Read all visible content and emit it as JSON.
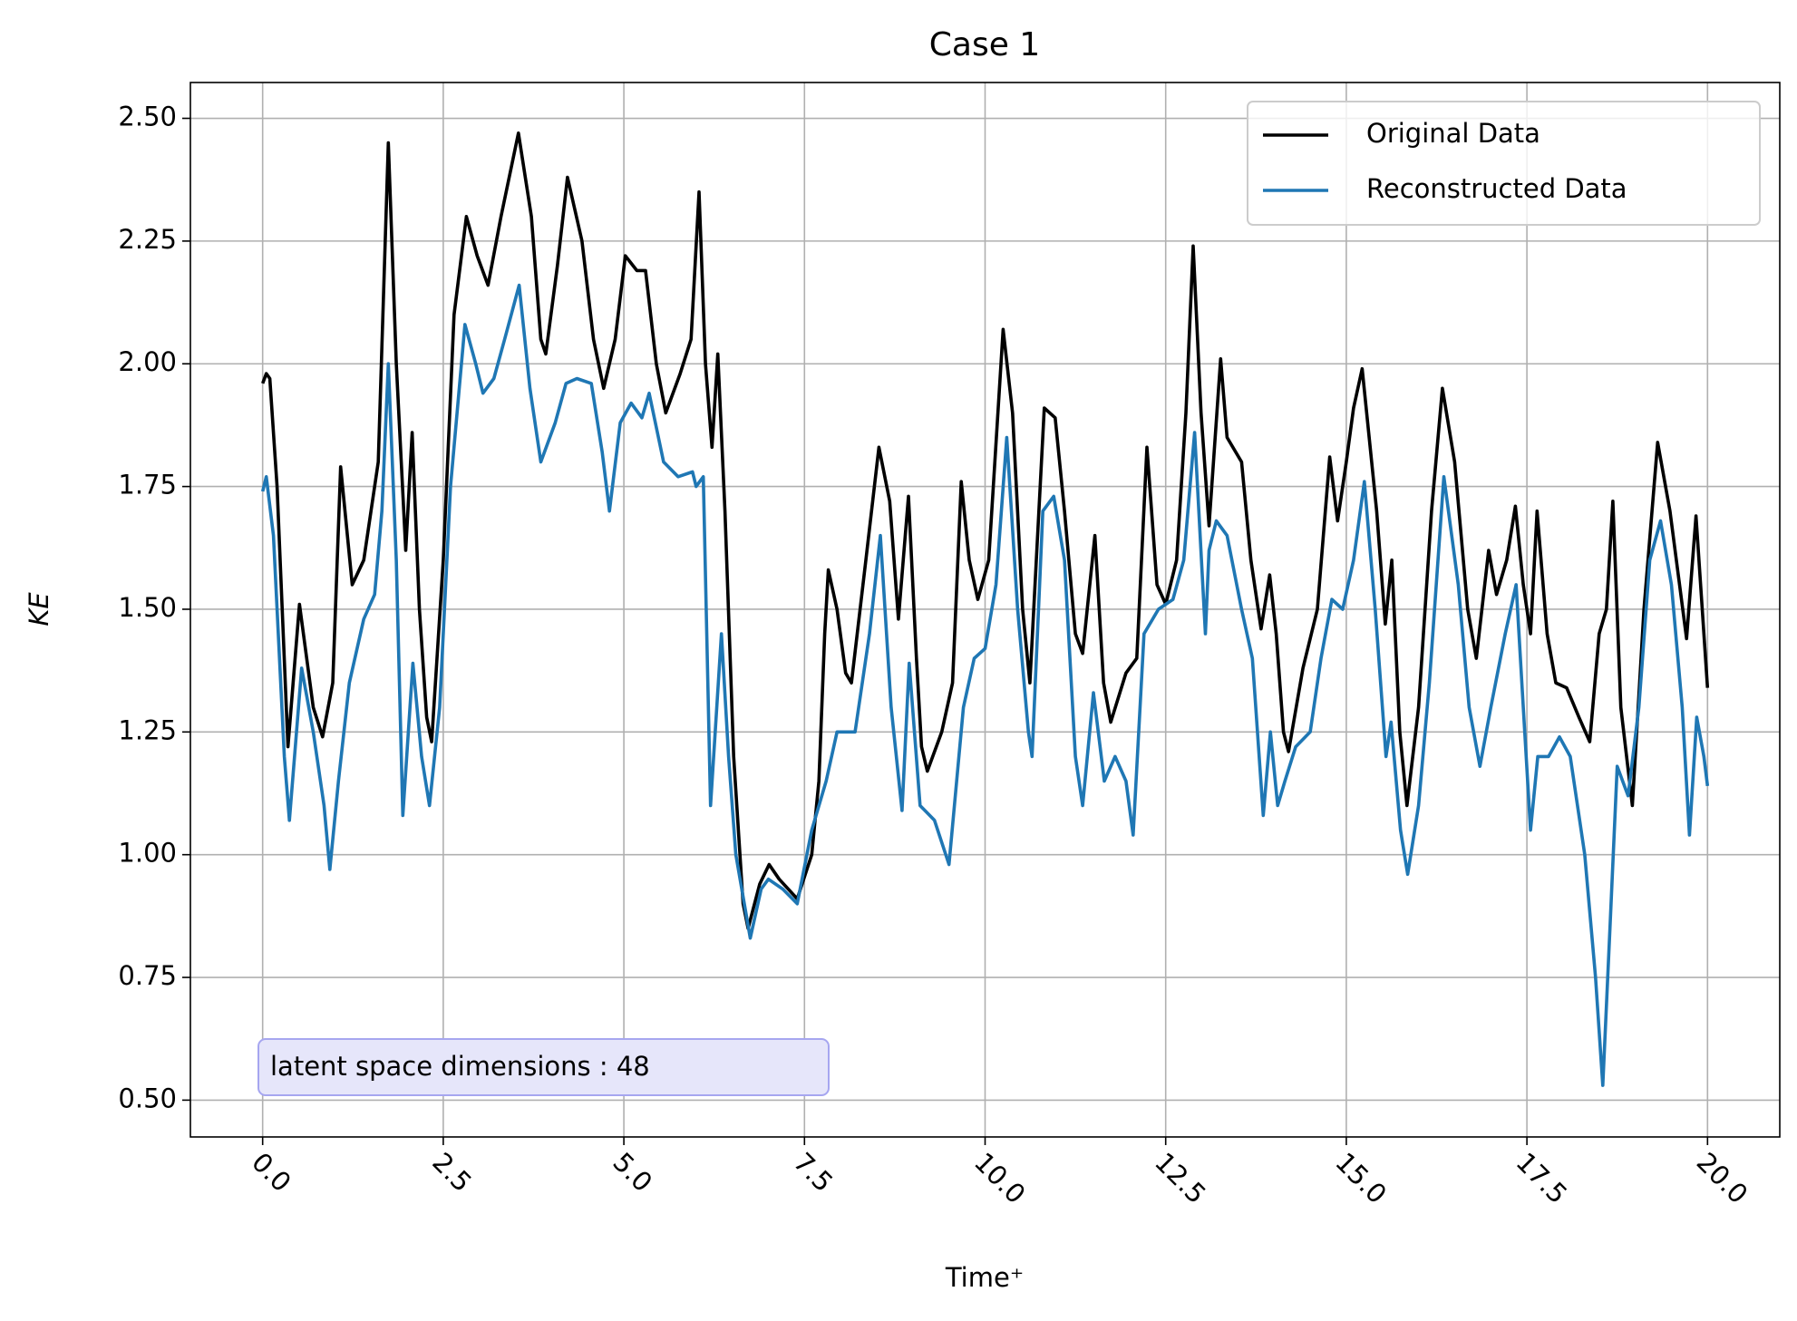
{
  "chart_data": {
    "type": "line",
    "title": "Case 1",
    "x_label": "Time⁺",
    "y_label": "KE",
    "annotation": "latent space dimensions : 48",
    "xlim": [
      -1,
      21
    ],
    "ylim": [
      0.425,
      2.573
    ],
    "xticks": [
      {
        "value": 0,
        "label": "0.0"
      },
      2.5,
      {
        "value": 5,
        "label": "5.0"
      },
      7.5,
      {
        "value": 10,
        "label": "10.0"
      },
      12.5,
      {
        "value": 15,
        "label": "15.0"
      },
      17.5,
      {
        "value": 20,
        "label": "20.0"
      }
    ],
    "yticks": [
      {
        "value": 0.5,
        "label": "0.50"
      },
      0.75,
      {
        "value": 1,
        "label": "1.00"
      },
      1.25,
      {
        "value": 1.5,
        "label": "1.50"
      },
      1.75,
      {
        "value": 2,
        "label": "2.00"
      },
      2.25,
      {
        "value": 2.5,
        "label": "2.50"
      }
    ],
    "grid": true,
    "legend_position": "upper right",
    "series": [
      {
        "name": "Original Data",
        "color": "#000000",
        "x": [
          0,
          0.05,
          0.1,
          0.2,
          0.35,
          0.51,
          0.7,
          0.83,
          0.97,
          1.08,
          1.24,
          1.4,
          1.6,
          1.74,
          1.85,
          1.98,
          2.07,
          2.17,
          2.27,
          2.34,
          2.5,
          2.65,
          2.82,
          2.97,
          3.12,
          3.3,
          3.54,
          3.72,
          3.85,
          3.92,
          4.08,
          4.22,
          4.42,
          4.58,
          4.72,
          4.88,
          5.02,
          5.18,
          5.3,
          5.45,
          5.58,
          5.78,
          5.93,
          6.04,
          6.13,
          6.22,
          6.3,
          6.4,
          6.52,
          6.65,
          6.72,
          6.88,
          7.01,
          7.15,
          7.4,
          7.6,
          7.7,
          7.78,
          7.83,
          7.95,
          8.07,
          8.15,
          8.35,
          8.53,
          8.68,
          8.8,
          8.94,
          9.05,
          9.12,
          9.2,
          9.4,
          9.55,
          9.67,
          9.78,
          9.9,
          10.05,
          10.25,
          10.38,
          10.52,
          10.62,
          10.82,
          10.97,
          11.1,
          11.25,
          11.35,
          11.52,
          11.64,
          11.74,
          11.95,
          12.1,
          12.24,
          12.38,
          12.5,
          12.65,
          12.78,
          12.88,
          12.99,
          13.1,
          13.26,
          13.35,
          13.55,
          13.68,
          13.82,
          13.94,
          14.03,
          14.13,
          14.2,
          14.4,
          14.6,
          14.77,
          14.88,
          15.0,
          15.1,
          15.22,
          15.42,
          15.54,
          15.63,
          15.74,
          15.84,
          16.0,
          16.18,
          16.33,
          16.5,
          16.68,
          16.8,
          16.97,
          17.08,
          17.22,
          17.34,
          17.45,
          17.55,
          17.64,
          17.78,
          17.9,
          18.05,
          18.22,
          18.37,
          18.5,
          18.6,
          18.69,
          18.8,
          18.96,
          19.12,
          19.31,
          19.48,
          19.71,
          19.84,
          20.0
        ],
        "values": [
          1.96,
          1.98,
          1.97,
          1.75,
          1.22,
          1.51,
          1.3,
          1.24,
          1.35,
          1.79,
          1.55,
          1.6,
          1.8,
          2.45,
          2.0,
          1.62,
          1.86,
          1.5,
          1.28,
          1.23,
          1.6,
          2.1,
          2.3,
          2.22,
          2.16,
          2.3,
          2.47,
          2.3,
          2.05,
          2.02,
          2.2,
          2.38,
          2.25,
          2.05,
          1.95,
          2.05,
          2.22,
          2.19,
          2.19,
          2.0,
          1.9,
          1.98,
          2.05,
          2.35,
          2.0,
          1.83,
          2.02,
          1.7,
          1.2,
          0.9,
          0.85,
          0.94,
          0.98,
          0.95,
          0.91,
          1.0,
          1.15,
          1.45,
          1.58,
          1.5,
          1.37,
          1.35,
          1.6,
          1.83,
          1.72,
          1.48,
          1.73,
          1.4,
          1.22,
          1.17,
          1.25,
          1.35,
          1.76,
          1.6,
          1.52,
          1.6,
          2.07,
          1.9,
          1.5,
          1.35,
          1.91,
          1.89,
          1.7,
          1.45,
          1.41,
          1.65,
          1.35,
          1.27,
          1.37,
          1.4,
          1.83,
          1.55,
          1.51,
          1.6,
          1.9,
          2.24,
          1.9,
          1.67,
          2.01,
          1.85,
          1.8,
          1.6,
          1.46,
          1.57,
          1.45,
          1.25,
          1.21,
          1.38,
          1.5,
          1.81,
          1.68,
          1.8,
          1.91,
          1.99,
          1.7,
          1.47,
          1.6,
          1.25,
          1.1,
          1.3,
          1.7,
          1.95,
          1.8,
          1.5,
          1.4,
          1.62,
          1.53,
          1.6,
          1.71,
          1.55,
          1.45,
          1.7,
          1.45,
          1.35,
          1.34,
          1.28,
          1.23,
          1.45,
          1.5,
          1.72,
          1.3,
          1.1,
          1.5,
          1.84,
          1.7,
          1.44,
          1.69,
          1.34
        ]
      },
      {
        "name": "Reconstructed Data",
        "color": "#1f77b4",
        "x": [
          0,
          0.05,
          0.15,
          0.3,
          0.37,
          0.54,
          0.7,
          0.85,
          0.93,
          1.05,
          1.2,
          1.4,
          1.55,
          1.65,
          1.74,
          1.85,
          1.94,
          2.08,
          2.2,
          2.31,
          2.45,
          2.6,
          2.8,
          2.95,
          3.05,
          3.2,
          3.35,
          3.55,
          3.7,
          3.85,
          4.05,
          4.2,
          4.35,
          4.55,
          4.7,
          4.8,
          4.95,
          5.1,
          5.25,
          5.35,
          5.55,
          5.75,
          5.95,
          6.0,
          6.1,
          6.2,
          6.35,
          6.45,
          6.55,
          6.75,
          6.9,
          7.0,
          7.2,
          7.4,
          7.6,
          7.8,
          7.95,
          8.2,
          8.4,
          8.55,
          8.7,
          8.85,
          8.95,
          9.1,
          9.3,
          9.5,
          9.7,
          9.85,
          10.0,
          10.15,
          10.3,
          10.45,
          10.6,
          10.65,
          10.8,
          10.95,
          11.1,
          11.25,
          11.35,
          11.5,
          11.65,
          11.8,
          11.95,
          12.05,
          12.2,
          12.4,
          12.6,
          12.75,
          12.9,
          13.05,
          13.1,
          13.2,
          13.35,
          13.55,
          13.7,
          13.85,
          13.95,
          14.05,
          14.15,
          14.3,
          14.5,
          14.65,
          14.8,
          14.95,
          15.1,
          15.25,
          15.4,
          15.55,
          15.62,
          15.75,
          15.85,
          16.0,
          16.15,
          16.35,
          16.55,
          16.7,
          16.85,
          17.0,
          17.2,
          17.35,
          17.45,
          17.55,
          17.65,
          17.8,
          17.95,
          18.1,
          18.3,
          18.45,
          18.55,
          18.65,
          18.75,
          18.9,
          19.05,
          19.2,
          19.35,
          19.5,
          19.65,
          19.75,
          19.85,
          19.95,
          20.0
        ],
        "values": [
          1.74,
          1.77,
          1.65,
          1.2,
          1.07,
          1.38,
          1.25,
          1.1,
          0.97,
          1.15,
          1.35,
          1.48,
          1.53,
          1.7,
          2.0,
          1.6,
          1.08,
          1.39,
          1.2,
          1.1,
          1.3,
          1.75,
          2.08,
          2.0,
          1.94,
          1.97,
          2.05,
          2.16,
          1.95,
          1.8,
          1.88,
          1.96,
          1.97,
          1.96,
          1.82,
          1.7,
          1.88,
          1.92,
          1.89,
          1.94,
          1.8,
          1.77,
          1.78,
          1.75,
          1.77,
          1.1,
          1.45,
          1.2,
          1.0,
          0.83,
          0.93,
          0.95,
          0.93,
          0.9,
          1.05,
          1.15,
          1.25,
          1.25,
          1.45,
          1.65,
          1.3,
          1.09,
          1.39,
          1.1,
          1.07,
          0.98,
          1.3,
          1.4,
          1.42,
          1.55,
          1.85,
          1.5,
          1.25,
          1.2,
          1.7,
          1.73,
          1.6,
          1.2,
          1.1,
          1.33,
          1.15,
          1.2,
          1.15,
          1.04,
          1.45,
          1.5,
          1.52,
          1.6,
          1.86,
          1.45,
          1.62,
          1.68,
          1.65,
          1.5,
          1.4,
          1.08,
          1.25,
          1.1,
          1.15,
          1.22,
          1.25,
          1.4,
          1.52,
          1.5,
          1.6,
          1.76,
          1.5,
          1.2,
          1.27,
          1.05,
          0.96,
          1.1,
          1.35,
          1.77,
          1.55,
          1.3,
          1.18,
          1.3,
          1.45,
          1.55,
          1.3,
          1.05,
          1.2,
          1.2,
          1.24,
          1.2,
          1.0,
          0.75,
          0.53,
          0.85,
          1.18,
          1.12,
          1.3,
          1.6,
          1.68,
          1.55,
          1.3,
          1.04,
          1.28,
          1.2,
          1.14
        ]
      }
    ]
  }
}
